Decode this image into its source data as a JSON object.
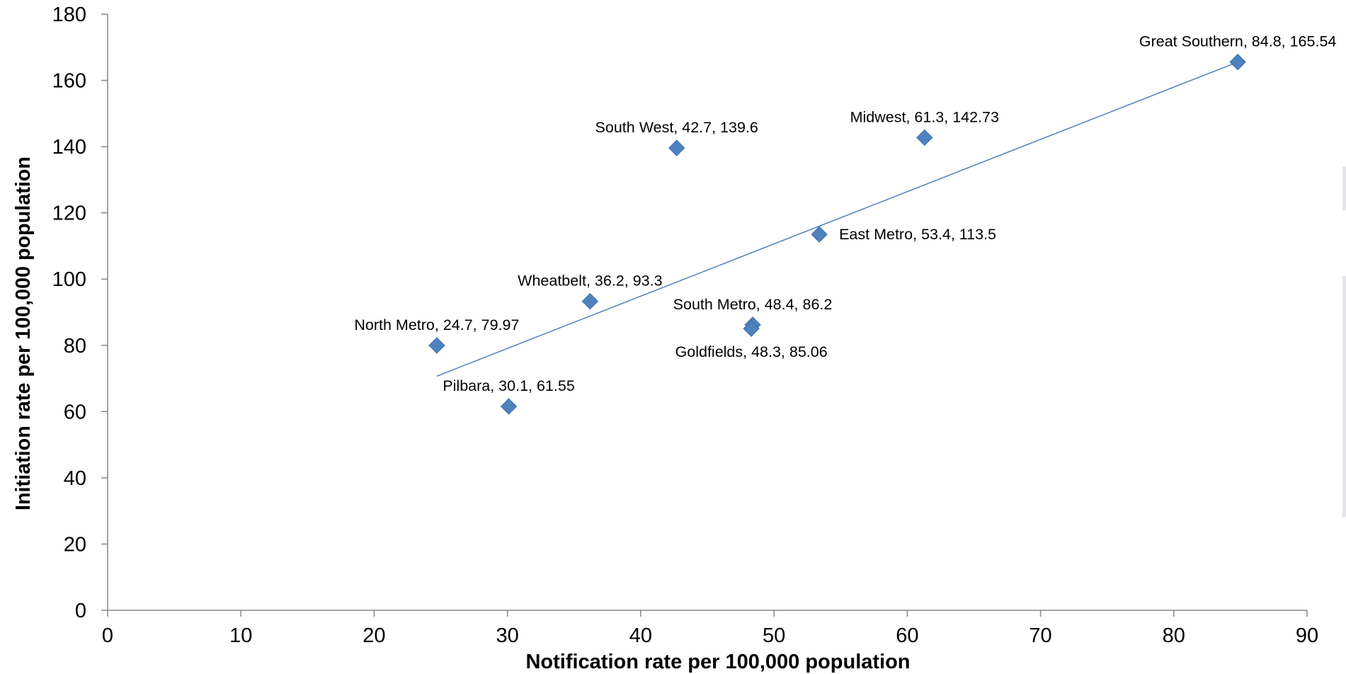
{
  "chart_data": {
    "type": "scatter",
    "title": "",
    "xlabel": "Notification rate per 100,000 population",
    "ylabel": "Initiation rate per 100,000 population",
    "xlim": [
      0,
      90
    ],
    "ylim": [
      0,
      180
    ],
    "x_ticks": [
      0,
      10,
      20,
      30,
      40,
      50,
      60,
      70,
      80,
      90
    ],
    "y_ticks": [
      0,
      20,
      40,
      60,
      80,
      100,
      120,
      140,
      160,
      180
    ],
    "grid": false,
    "marker": "diamond",
    "marker_color": "#4f81bd",
    "trendline_color": "#4f81bd",
    "trendline": {
      "type": "linear",
      "x_start": 24.7,
      "y_start": 70.7,
      "x_end": 84.8,
      "y_end": 165.54
    },
    "points": [
      {
        "name": "North Metro",
        "x": 24.7,
        "y": 79.97,
        "label": "North Metro, 24.7, 79.97",
        "label_pos": "above"
      },
      {
        "name": "Pilbara",
        "x": 30.1,
        "y": 61.55,
        "label": "Pilbara, 30.1, 61.55",
        "label_pos": "above"
      },
      {
        "name": "Wheatbelt",
        "x": 36.2,
        "y": 93.3,
        "label": "Wheatbelt, 36.2, 93.3",
        "label_pos": "above"
      },
      {
        "name": "South West",
        "x": 42.7,
        "y": 139.6,
        "label": "South West, 42.7, 139.6",
        "label_pos": "above"
      },
      {
        "name": "South Metro",
        "x": 48.4,
        "y": 86.2,
        "label": "South Metro, 48.4, 86.2",
        "label_pos": "above"
      },
      {
        "name": "Goldfields",
        "x": 48.3,
        "y": 85.06,
        "label": "Goldfields, 48.3, 85.06",
        "label_pos": "below"
      },
      {
        "name": "East Metro",
        "x": 53.4,
        "y": 113.5,
        "label": "East Metro, 53.4, 113.5",
        "label_pos": "right"
      },
      {
        "name": "Midwest",
        "x": 61.3,
        "y": 142.73,
        "label": "Midwest, 61.3, 142.73",
        "label_pos": "above"
      },
      {
        "name": "Great Southern",
        "x": 84.8,
        "y": 165.54,
        "label": "Great Southern, 84.8, 165.54",
        "label_pos": "above"
      }
    ]
  }
}
